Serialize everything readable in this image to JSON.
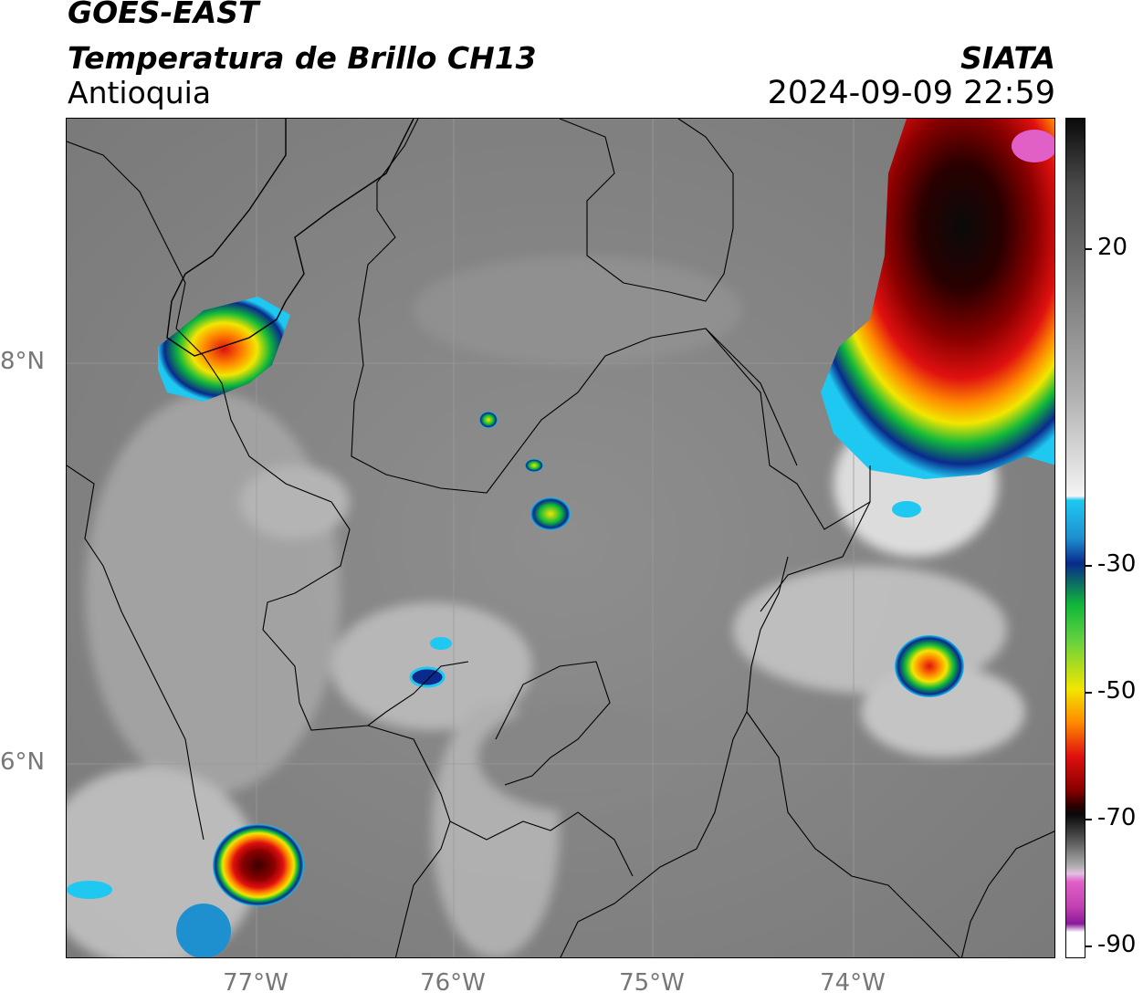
{
  "header": {
    "satellite": "GOES-EAST",
    "product": "Temperatura de Brillo CH13",
    "region": "Antioquia",
    "agency": "SIATA",
    "datetime": "2024-09-09 22:59"
  },
  "axes": {
    "lat_labels": [
      "8°N",
      "6°N"
    ],
    "lon_labels": [
      "77°W",
      "76°W",
      "75°W",
      "74°W"
    ]
  },
  "colorbar": {
    "tick_labels": [
      "20",
      "-30",
      "-50",
      "-70",
      "-90"
    ],
    "colors": {
      "warm_white": "#f4f4f4",
      "cyan": "#1ec8f0",
      "blue": "#0a2a8c",
      "green": "#10b83a",
      "yellow": "#f2e600",
      "orange": "#ff8a00",
      "red": "#e01010",
      "dark_red": "#5a0000",
      "black": "#0a0a0a",
      "magenta": "#e060c8",
      "purple": "#8a1a9a"
    }
  }
}
